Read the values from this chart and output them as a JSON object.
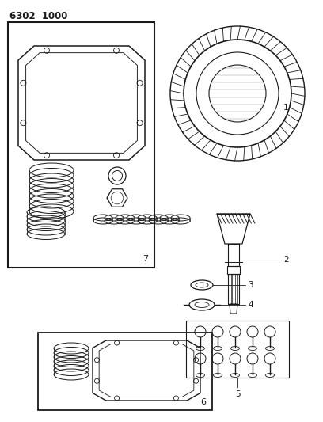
{
  "title": "6302  1000",
  "bg_color": "#ffffff",
  "line_color": "#1a1a1a",
  "fig_width": 4.08,
  "fig_height": 5.33,
  "dpi": 100
}
